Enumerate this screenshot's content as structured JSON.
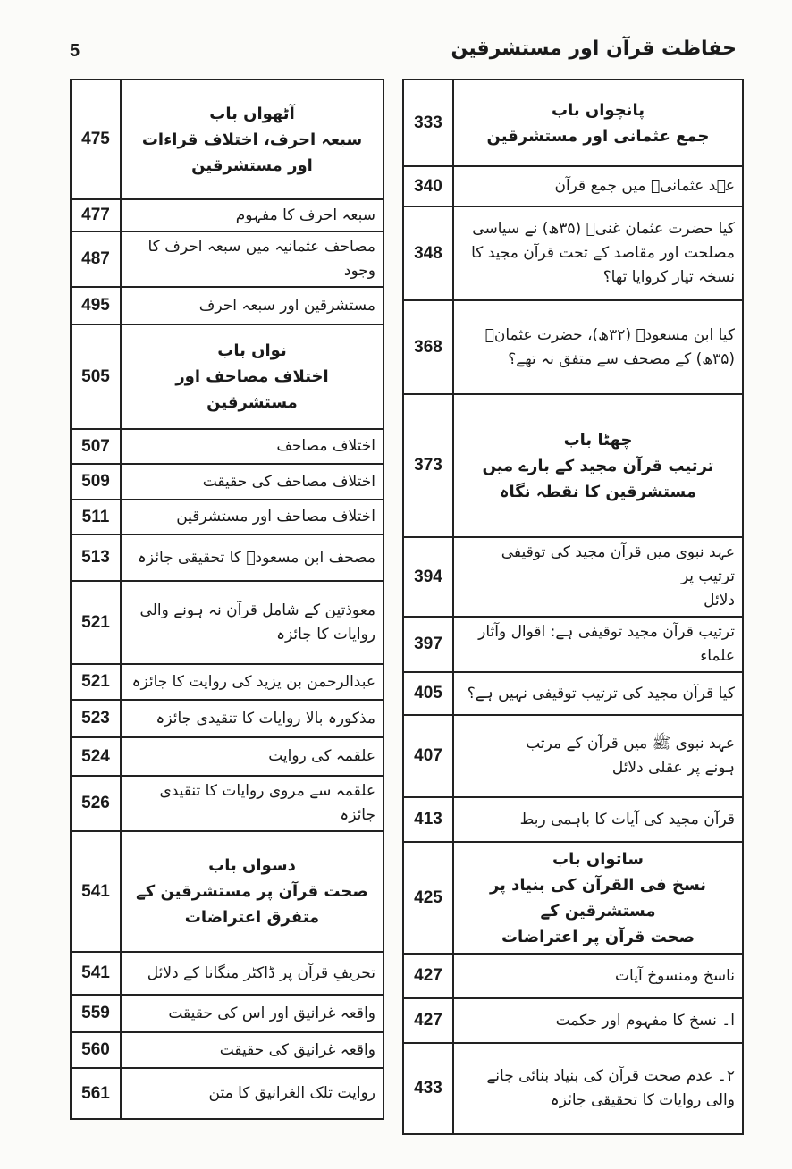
{
  "page_number": "5",
  "running_head": "حفاظت قرآن اور مستشرقین",
  "left_column": [
    {
      "lines": [
        "آٹھواں باب",
        "سبعہ احرف، اختلاف قراءات",
        "اور مستشرقین"
      ],
      "page": "475",
      "chapter": true
    },
    {
      "lines": [
        "سبعہ احرف کا مفہوم"
      ],
      "page": "477"
    },
    {
      "lines": [
        "مصاحف عثمانیہ میں سبعہ احرف کا وجود"
      ],
      "page": "487"
    },
    {
      "lines": [
        "مستشرقین اور سبعہ احرف"
      ],
      "page": "495"
    },
    {
      "lines": [
        "نواں باب",
        "اختلاف مصاحف اور مستشرقین"
      ],
      "page": "505",
      "chapter": true
    },
    {
      "lines": [
        "اختلاف مصاحف"
      ],
      "page": "507"
    },
    {
      "lines": [
        "اختلاف مصاحف کی حقیقت"
      ],
      "page": "509"
    },
    {
      "lines": [
        "اختلاف مصاحف اور مستشرقین"
      ],
      "page": "511"
    },
    {
      "lines": [
        "مصحف ابن مسعودؓ کا تحقیقی جائزہ"
      ],
      "page": "513"
    },
    {
      "lines": [
        "معوذتین کے شامل قرآن نہ ہونے والی",
        "روایات کا جائزہ"
      ],
      "page": "521"
    },
    {
      "lines": [
        "عبدالرحمن بن یزید کی روایت کا جائزہ"
      ],
      "page": "521"
    },
    {
      "lines": [
        "مذکورہ بالا روایات کا تنقیدی جائزہ"
      ],
      "page": "523"
    },
    {
      "lines": [
        "علقمہ کی روایت"
      ],
      "page": "524"
    },
    {
      "lines": [
        "علقمہ سے مروی روایات کا تنقیدی جائزہ"
      ],
      "page": "526"
    },
    {
      "lines": [
        "دسواں باب",
        "صحت قرآن پر مستشرقین کے",
        "متفرق اعتراضات"
      ],
      "page": "541",
      "chapter": true
    },
    {
      "lines": [
        "تحریفِ قرآن پر ڈاکٹر منگانا کے دلائل"
      ],
      "page": "541"
    },
    {
      "lines": [
        "واقعہ غرانیق اور اس کی حقیقت"
      ],
      "page": "559"
    },
    {
      "lines": [
        "واقعہ غرانیق کی حقیقت"
      ],
      "page": "560"
    },
    {
      "lines": [
        "روایت تلک الغرانیق کا متن"
      ],
      "page": "561"
    }
  ],
  "right_column": [
    {
      "lines": [
        "پانچواں باب",
        "جمع عثمانی اور مستشرقین"
      ],
      "page": "333",
      "chapter": true
    },
    {
      "lines": [
        "عہد عثمانیؓ میں جمع قرآن"
      ],
      "page": "340"
    },
    {
      "lines": [
        "کیا حضرت عثمان غنیؓ (۳۵ھ) نے سیاسی",
        "مصلحت اور مقاصد کے تحت قرآن مجید کا",
        "نسخہ تیار کروایا تھا؟"
      ],
      "page": "348"
    },
    {
      "lines": [
        "کیا ابن مسعودؓ (۳۲ھ)، حضرت عثمانؓ",
        "(۳۵ھ) کے مصحف سے متفق نہ تھے؟"
      ],
      "page": "368"
    },
    {
      "lines": [
        "چھٹا باب",
        "ترتیب قرآن مجید کے بارے میں",
        "مستشرقین کا نقطہ نگاہ"
      ],
      "page": "373",
      "chapter": true
    },
    {
      "lines": [
        "عہد نبوی میں قرآن مجید کی توقیفی ترتیب پر",
        "دلائل"
      ],
      "page": "394"
    },
    {
      "lines": [
        "ترتیب قرآن مجید توقیفی ہے: اقوال وآثار علماء"
      ],
      "page": "397"
    },
    {
      "lines": [
        "کیا قرآن مجید کی ترتیب توقیفی نہیں ہے؟"
      ],
      "page": "405"
    },
    {
      "lines": [
        "عہد نبوی ﷺ میں قرآن کے مرتب",
        "ہونے پر عقلی دلائل"
      ],
      "page": "407"
    },
    {
      "lines": [
        "قرآن مجید کی آیات کا باہمی ربط"
      ],
      "page": "413"
    },
    {
      "lines": [
        "ساتواں باب",
        "نسخ فی القرآن کی بنیاد پر مستشرقین کے",
        "صحت قرآن پر اعتراضات"
      ],
      "page": "425",
      "chapter": true
    },
    {
      "lines": [
        "ناسخ ومنسوخ آیات"
      ],
      "page": "427"
    },
    {
      "lines": [
        "ا۔ نسخ کا مفہوم اور حکمت"
      ],
      "page": "427"
    },
    {
      "lines": [
        "۲۔ عدم صحت قرآن کی بنیاد بنائی جانے",
        "والی روایات کا تحقیقی جائزہ"
      ],
      "page": "433"
    }
  ]
}
